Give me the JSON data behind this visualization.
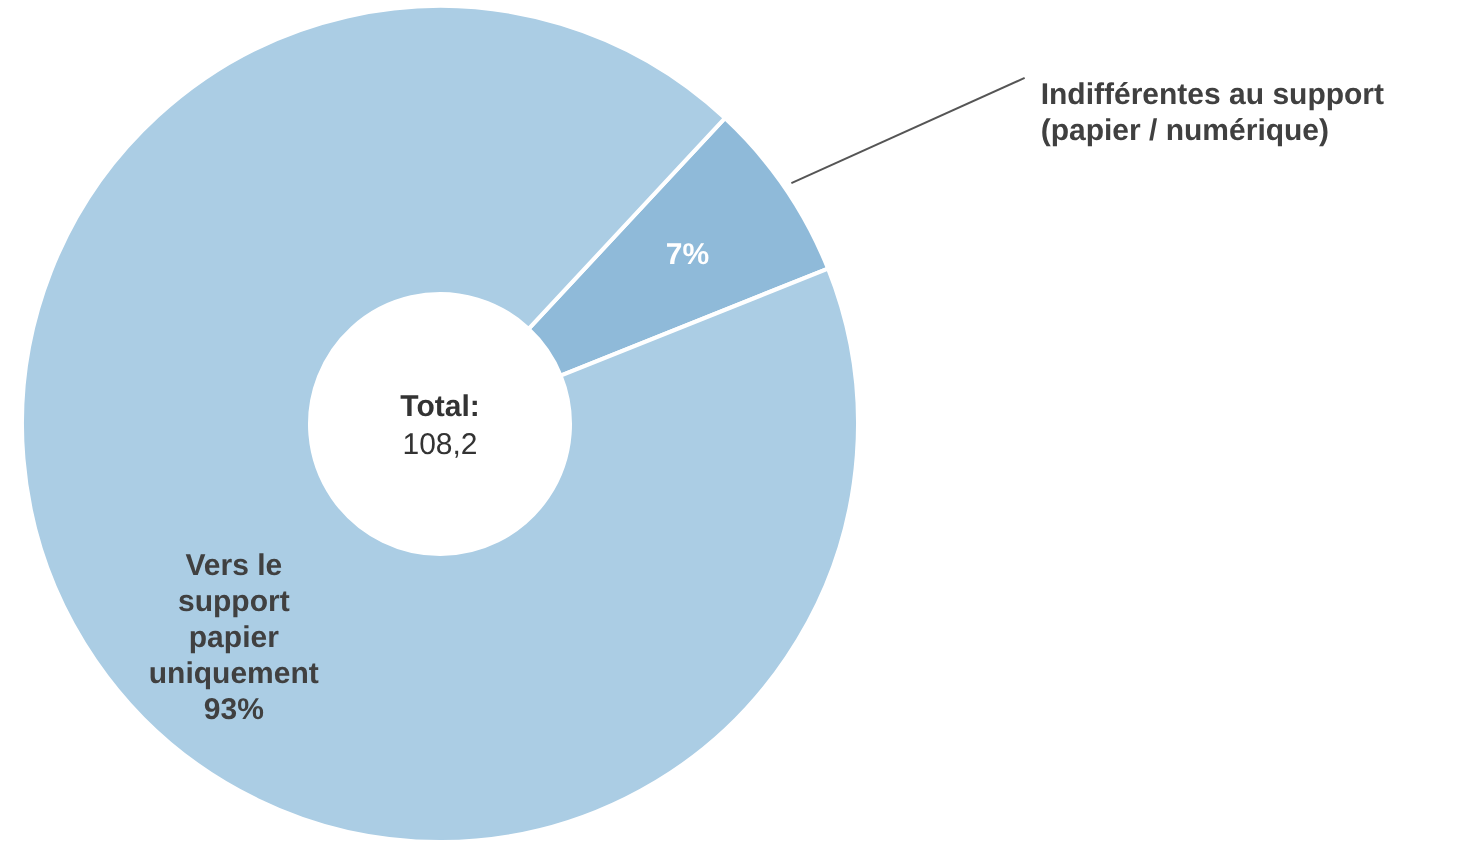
{
  "chart_data": {
    "type": "donut",
    "categories": [
      "Indifférentes au support (papier / numérique)",
      "Vers le support papier uniquement"
    ],
    "values": [
      7,
      93
    ],
    "colors": [
      "#8fbad9",
      "#abcde4"
    ],
    "value_labels": [
      "7%",
      "93%"
    ],
    "annotations": [
      "Total:",
      "108,2"
    ]
  }
}
